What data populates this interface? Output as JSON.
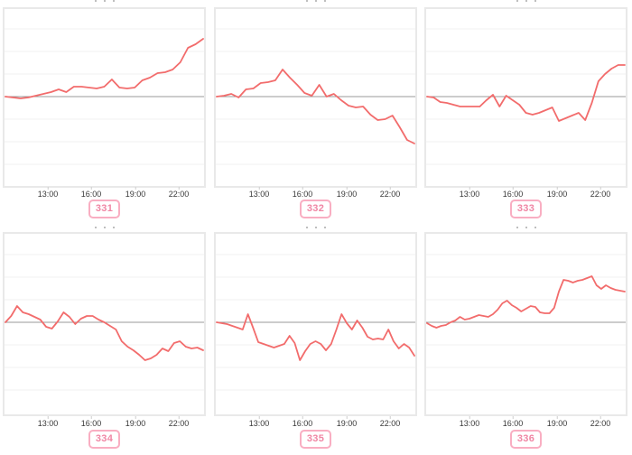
{
  "colors": {
    "line": "#f26c6c",
    "baseline": "#999999",
    "grid": "#f0f0f0",
    "panel_border": "#e9e9e9",
    "tick_label": "#3a3a3a",
    "badge_border": "#f9aec2",
    "badge_text": "#f086a4"
  },
  "x_tick_labels": [
    "13:00",
    "16:00",
    "19:00",
    "22:00"
  ],
  "chart_data": [
    {
      "type": "line",
      "label": "331",
      "x_ticks": [
        "13:00",
        "16:00",
        "19:00",
        "22:00"
      ],
      "baseline": 0,
      "grid": "on",
      "legend": "none",
      "note": "values are vertical offsets (px) above the gray baseline; one gridline division = 25",
      "values": [
        0,
        -1,
        -2,
        -1,
        1,
        3,
        5,
        8,
        5,
        11,
        11,
        10,
        9,
        11,
        19,
        10,
        9,
        10,
        18,
        21,
        26,
        27,
        30,
        38,
        54,
        58,
        64
      ]
    },
    {
      "type": "line",
      "label": "332",
      "x_ticks": [
        "13:00",
        "16:00",
        "19:00",
        "22:00"
      ],
      "baseline": 0,
      "grid": "on",
      "legend": "none",
      "values": [
        0,
        1,
        3,
        -1,
        8,
        9,
        15,
        16,
        18,
        30,
        21,
        13,
        4,
        1,
        13,
        0,
        3,
        -4,
        -10,
        -12,
        -11,
        -20,
        -26,
        -25,
        -21,
        -34,
        -48,
        -52
      ]
    },
    {
      "type": "line",
      "label": "333",
      "x_ticks": [
        "13:00",
        "16:00",
        "19:00",
        "22:00"
      ],
      "baseline": 0,
      "grid": "on",
      "legend": "none",
      "values": [
        0,
        -1,
        -6,
        -7,
        -9,
        -11,
        -11,
        -11,
        -11,
        -4,
        2,
        -11,
        1,
        -4,
        -9,
        -18,
        -20,
        -18,
        -15,
        -12,
        -27,
        -24,
        -21,
        -18,
        -26,
        -7,
        17,
        25,
        31,
        35,
        35
      ]
    },
    {
      "type": "line",
      "label": "334",
      "x_ticks": [
        "13:00",
        "16:00",
        "19:00",
        "22:00"
      ],
      "baseline": 0,
      "grid": "on",
      "legend": "none",
      "values": [
        0,
        7,
        18,
        11,
        9,
        6,
        3,
        -5,
        -7,
        1,
        11,
        6,
        -2,
        4,
        7,
        7,
        3,
        0,
        -4,
        -8,
        -21,
        -27,
        -31,
        -36,
        -42,
        -40,
        -36,
        -29,
        -32,
        -23,
        -21,
        -27,
        -29,
        -28,
        -31
      ]
    },
    {
      "type": "line",
      "label": "335",
      "x_ticks": [
        "13:00",
        "16:00",
        "19:00",
        "22:00"
      ],
      "baseline": 0,
      "grid": "on",
      "legend": "none",
      "values": [
        0,
        -1,
        -2,
        -4,
        -6,
        -8,
        9,
        -6,
        -22,
        -24,
        -26,
        -28,
        -26,
        -24,
        -15,
        -23,
        -42,
        -32,
        -24,
        -21,
        -24,
        -31,
        -24,
        -8,
        9,
        -1,
        -8,
        2,
        -6,
        -16,
        -19,
        -18,
        -19,
        -8,
        -21,
        -29,
        -24,
        -28,
        -37
      ]
    },
    {
      "type": "line",
      "label": "336",
      "x_ticks": [
        "13:00",
        "16:00",
        "19:00",
        "22:00"
      ],
      "baseline": 0,
      "grid": "on",
      "legend": "none",
      "values": [
        -1,
        -4,
        -6,
        -4,
        -3,
        0,
        2,
        6,
        3,
        4,
        6,
        8,
        7,
        6,
        9,
        14,
        21,
        24,
        19,
        16,
        12,
        15,
        18,
        17,
        11,
        10,
        10,
        16,
        34,
        47,
        46,
        44,
        46,
        47,
        49,
        51,
        41,
        37,
        41,
        38,
        36,
        35,
        34
      ]
    }
  ]
}
